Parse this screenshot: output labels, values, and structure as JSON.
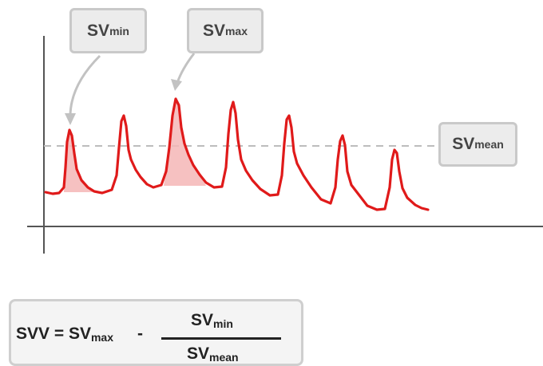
{
  "colors": {
    "waveform": "#e01a1a",
    "area_fill": "#f4b6b6",
    "axis": "#555555",
    "mean_line": "#bdbdbd",
    "arrow": "#c2c2c2"
  },
  "labels": {
    "sv": "SV",
    "min": "min",
    "max": "max",
    "mean": "mean"
  },
  "formula": {
    "lhs_prefix": "SVV = ",
    "sv": "SV",
    "max": "max",
    "minus": "-",
    "min": "min",
    "mean": "mean"
  }
}
